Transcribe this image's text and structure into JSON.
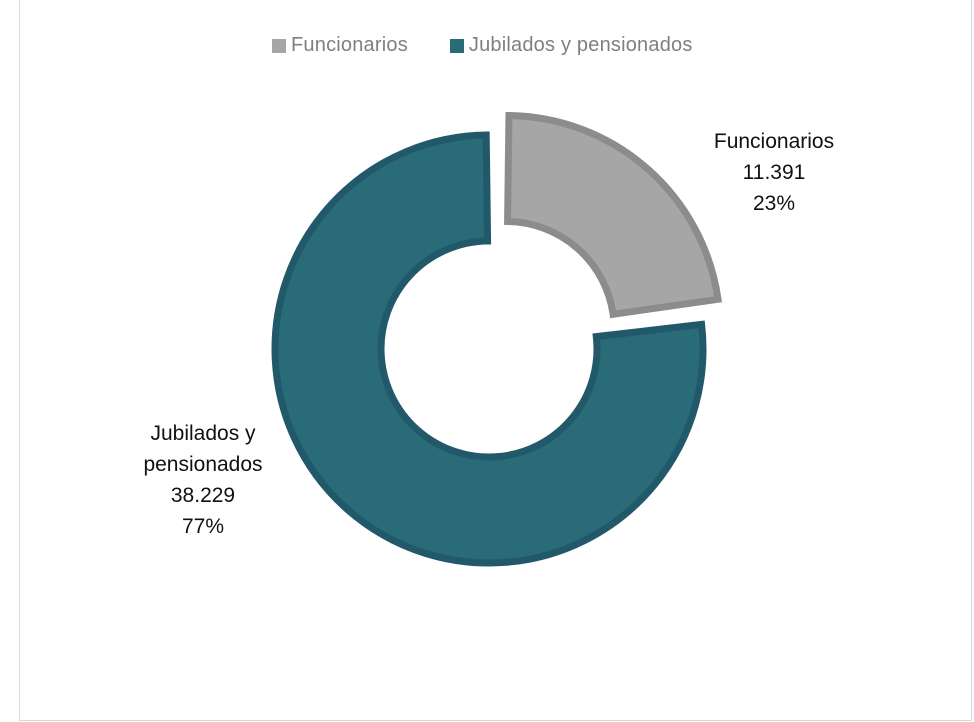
{
  "chart_data": {
    "type": "pie",
    "variant": "doughnut",
    "title": "",
    "legend_position": "top",
    "slices": [
      {
        "name": "Funcionarios",
        "value": 11391,
        "value_label": "11.391",
        "percent": 23,
        "percent_label": "23%",
        "color": "#a6a6a6",
        "border_color": "#8c8c8c",
        "exploded": true,
        "label_lines": [
          "Funcionarios",
          "11.391",
          "23%"
        ]
      },
      {
        "name": "Jubilados y pensionados",
        "value": 38229,
        "value_label": "38.229",
        "percent": 77,
        "percent_label": "77%",
        "color": "#2a6b78",
        "border_color": "#22596a",
        "exploded": false,
        "label_lines": [
          "Jubilados y",
          "pensionados",
          "38.229",
          "77%"
        ]
      }
    ]
  }
}
